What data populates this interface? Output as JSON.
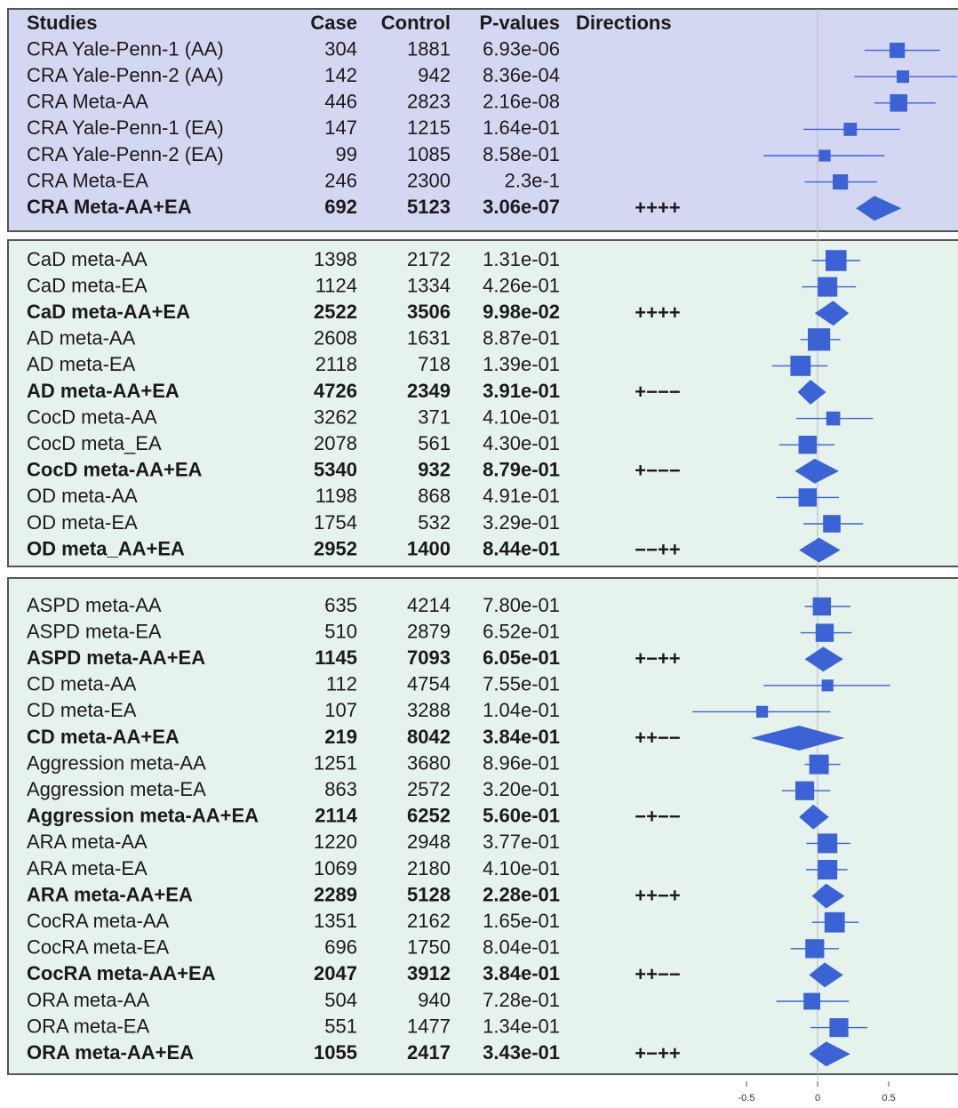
{
  "chart_data": {
    "type": "forest",
    "columns": [
      "Studies",
      "Case",
      "Control",
      "P-values",
      "Directions"
    ],
    "x_ticks": [
      -0.5,
      0,
      0.5
    ],
    "x_range": [
      -1.05,
      1.0
    ],
    "reference_line": 0,
    "marker_color": "#3b63d6",
    "groups": [
      {
        "background": "#d4d7f2",
        "rows": [
          {
            "study": "CRA Yale-Penn-1 (AA)",
            "case": "304",
            "control": "1881",
            "p": "6.93e-06",
            "dir": "",
            "bold": false,
            "est": 0.56,
            "lo": 0.33,
            "hi": 0.86,
            "size": 0.7
          },
          {
            "study": "CRA Yale-Penn-2 (AA)",
            "case": "142",
            "control": "942",
            "p": "8.36e-04",
            "dir": "",
            "bold": false,
            "est": 0.6,
            "lo": 0.26,
            "hi": 0.98,
            "size": 0.5
          },
          {
            "study": "CRA Meta-AA",
            "case": "446",
            "control": "2823",
            "p": "2.16e-08",
            "dir": "",
            "bold": false,
            "est": 0.57,
            "lo": 0.4,
            "hi": 0.83,
            "size": 0.85
          },
          {
            "study": "CRA Yale-Penn-1 (EA)",
            "case": "147",
            "control": "1215",
            "p": "1.64e-01",
            "dir": "",
            "bold": false,
            "est": 0.23,
            "lo": -0.1,
            "hi": 0.58,
            "size": 0.55
          },
          {
            "study": "CRA Yale-Penn-2 (EA)",
            "case": "99",
            "control": "1085",
            "p": "8.58e-01",
            "dir": "",
            "bold": false,
            "est": 0.05,
            "lo": -0.38,
            "hi": 0.47,
            "size": 0.45
          },
          {
            "study": "CRA Meta-EA",
            "case": "246",
            "control": "2300",
            "p": "2.3e-1",
            "dir": "",
            "bold": false,
            "est": 0.16,
            "lo": -0.09,
            "hi": 0.42,
            "size": 0.7
          },
          {
            "study": "CRA Meta-AA+EA",
            "case": "692",
            "control": "5123",
            "p": "3.06e-07",
            "dir": "++++",
            "bold": true,
            "est": 0.4,
            "lo": 0.27,
            "hi": 0.59
          }
        ]
      },
      {
        "background": "#e6f2ec",
        "rows": [
          {
            "study": "CaD meta-AA",
            "case": "1398",
            "control": "2172",
            "p": "1.31e-01",
            "dir": "",
            "bold": false,
            "est": 0.13,
            "lo": -0.04,
            "hi": 0.3,
            "size": 1.1
          },
          {
            "study": "CaD meta-EA",
            "case": "1124",
            "control": "1334",
            "p": "4.26e-01",
            "dir": "",
            "bold": false,
            "est": 0.07,
            "lo": -0.11,
            "hi": 0.27,
            "size": 1.0
          },
          {
            "study": "CaD meta-AA+EA",
            "case": "2522",
            "control": "3506",
            "p": "9.98e-02",
            "dir": "++++",
            "bold": true,
            "est": 0.11,
            "lo": -0.02,
            "hi": 0.22
          },
          {
            "study": "AD meta-AA",
            "case": "2608",
            "control": "1631",
            "p": "8.87e-01",
            "dir": "",
            "bold": false,
            "est": 0.01,
            "lo": -0.12,
            "hi": 0.16,
            "size": 1.2
          },
          {
            "study": "AD meta-EA",
            "case": "2118",
            "control": "718",
            "p": "1.39e-01",
            "dir": "",
            "bold": false,
            "est": -0.12,
            "lo": -0.32,
            "hi": 0.07,
            "size": 1.05
          },
          {
            "study": "AD meta-AA+EA",
            "case": "4726",
            "control": "2349",
            "p": "3.91e-01",
            "dir": "+−−−",
            "bold": true,
            "est": -0.05,
            "lo": -0.14,
            "hi": 0.06
          },
          {
            "study": "CocD meta-AA",
            "case": "3262",
            "control": "371",
            "p": "4.10e-01",
            "dir": "",
            "bold": false,
            "est": 0.11,
            "lo": -0.15,
            "hi": 0.39,
            "size": 0.6
          },
          {
            "study": "CocD meta_EA",
            "case": "2078",
            "control": "561",
            "p": "4.30e-01",
            "dir": "",
            "bold": false,
            "est": -0.07,
            "lo": -0.27,
            "hi": 0.12,
            "size": 0.9
          },
          {
            "study": "CocD meta-AA+EA",
            "case": "5340",
            "control": "932",
            "p": "8.79e-01",
            "dir": "+−−−",
            "bold": true,
            "est": -0.02,
            "lo": -0.16,
            "hi": 0.15
          },
          {
            "study": "OD meta-AA",
            "case": "1198",
            "control": "868",
            "p": "4.91e-01",
            "dir": "",
            "bold": false,
            "est": -0.07,
            "lo": -0.29,
            "hi": 0.15,
            "size": 0.9
          },
          {
            "study": "OD meta-EA",
            "case": "1754",
            "control": "532",
            "p": "3.29e-01",
            "dir": "",
            "bold": false,
            "est": 0.1,
            "lo": -0.1,
            "hi": 0.32,
            "size": 0.85
          },
          {
            "study": "OD meta_AA+EA",
            "case": "2952",
            "control": "1400",
            "p": "8.44e-01",
            "dir": "−−++",
            "bold": true,
            "est": 0.01,
            "lo": -0.13,
            "hi": 0.16
          }
        ]
      },
      {
        "background": "#e6f2ec",
        "rows": [
          {
            "study": "ASPD meta-AA",
            "case": "635",
            "control": "4214",
            "p": "7.80e-01",
            "dir": "",
            "bold": false,
            "est": 0.03,
            "lo": -0.09,
            "hi": 0.23,
            "size": 0.9
          },
          {
            "study": "ASPD meta-EA",
            "case": "510",
            "control": "2879",
            "p": "6.52e-01",
            "dir": "",
            "bold": false,
            "est": 0.05,
            "lo": -0.12,
            "hi": 0.24,
            "size": 0.9
          },
          {
            "study": "ASPD meta-AA+EA",
            "case": "1145",
            "control": "7093",
            "p": "6.05e-01",
            "dir": "+−++",
            "bold": true,
            "est": 0.04,
            "lo": -0.09,
            "hi": 0.18
          },
          {
            "study": "CD meta-AA",
            "case": "112",
            "control": "4754",
            "p": "7.55e-01",
            "dir": "",
            "bold": false,
            "est": 0.07,
            "lo": -0.38,
            "hi": 0.51,
            "size": 0.45
          },
          {
            "study": "CD meta-EA",
            "case": "107",
            "control": "3288",
            "p": "1.04e-01",
            "dir": "",
            "bold": false,
            "est": -0.39,
            "lo": -0.88,
            "hi": 0.09,
            "size": 0.45
          },
          {
            "study": "CD meta-AA+EA",
            "case": "219",
            "control": "8042",
            "p": "3.84e-01",
            "dir": "++−−",
            "bold": true,
            "est": -0.13,
            "lo": -0.47,
            "hi": 0.19
          },
          {
            "study": "Aggression meta-AA",
            "case": "1251",
            "control": "3680",
            "p": "8.96e-01",
            "dir": "",
            "bold": false,
            "est": 0.01,
            "lo": -0.09,
            "hi": 0.16,
            "size": 1.0
          },
          {
            "study": "Aggression meta-EA",
            "case": "863",
            "control": "2572",
            "p": "3.20e-01",
            "dir": "",
            "bold": false,
            "est": -0.09,
            "lo": -0.25,
            "hi": 0.09,
            "size": 0.95
          },
          {
            "study": "Aggression meta-AA+EA",
            "case": "2114",
            "control": "6252",
            "p": "5.60e-01",
            "dir": "−+−−",
            "bold": true,
            "est": -0.03,
            "lo": -0.13,
            "hi": 0.08
          },
          {
            "study": "ARA meta-AA",
            "case": "1220",
            "control": "2948",
            "p": "3.77e-01",
            "dir": "",
            "bold": false,
            "est": 0.07,
            "lo": -0.08,
            "hi": 0.23,
            "size": 1.0
          },
          {
            "study": "ARA meta-EA",
            "case": "1069",
            "control": "2180",
            "p": "4.10e-01",
            "dir": "",
            "bold": false,
            "est": 0.07,
            "lo": -0.08,
            "hi": 0.21,
            "size": 1.0
          },
          {
            "study": "ARA meta-AA+EA",
            "case": "2289",
            "control": "5128",
            "p": "2.28e-01",
            "dir": "++−+",
            "bold": true,
            "est": 0.06,
            "lo": -0.04,
            "hi": 0.19
          },
          {
            "study": "CocRA meta-AA",
            "case": "1351",
            "control": "2162",
            "p": "1.65e-01",
            "dir": "",
            "bold": false,
            "est": 0.12,
            "lo": -0.04,
            "hi": 0.29,
            "size": 1.05
          },
          {
            "study": "CocRA meta-EA",
            "case": "696",
            "control": "1750",
            "p": "8.04e-01",
            "dir": "",
            "bold": false,
            "est": -0.02,
            "lo": -0.19,
            "hi": 0.15,
            "size": 0.95
          },
          {
            "study": "CocRA meta-AA+EA",
            "case": "2047",
            "control": "3912",
            "p": "3.84e-01",
            "dir": "++−−",
            "bold": true,
            "est": 0.05,
            "lo": -0.06,
            "hi": 0.18
          },
          {
            "study": "ORA meta-AA",
            "case": "504",
            "control": "940",
            "p": "7.28e-01",
            "dir": "",
            "bold": false,
            "est": -0.04,
            "lo": -0.29,
            "hi": 0.22,
            "size": 0.8
          },
          {
            "study": "ORA meta-EA",
            "case": "551",
            "control": "1477",
            "p": "1.34e-01",
            "dir": "",
            "bold": false,
            "est": 0.15,
            "lo": -0.05,
            "hi": 0.35,
            "size": 0.95
          },
          {
            "study": "ORA meta-AA+EA",
            "case": "1055",
            "control": "2417",
            "p": "3.43e-01",
            "dir": "+−++",
            "bold": true,
            "est": 0.06,
            "lo": -0.06,
            "hi": 0.23
          }
        ]
      }
    ]
  }
}
